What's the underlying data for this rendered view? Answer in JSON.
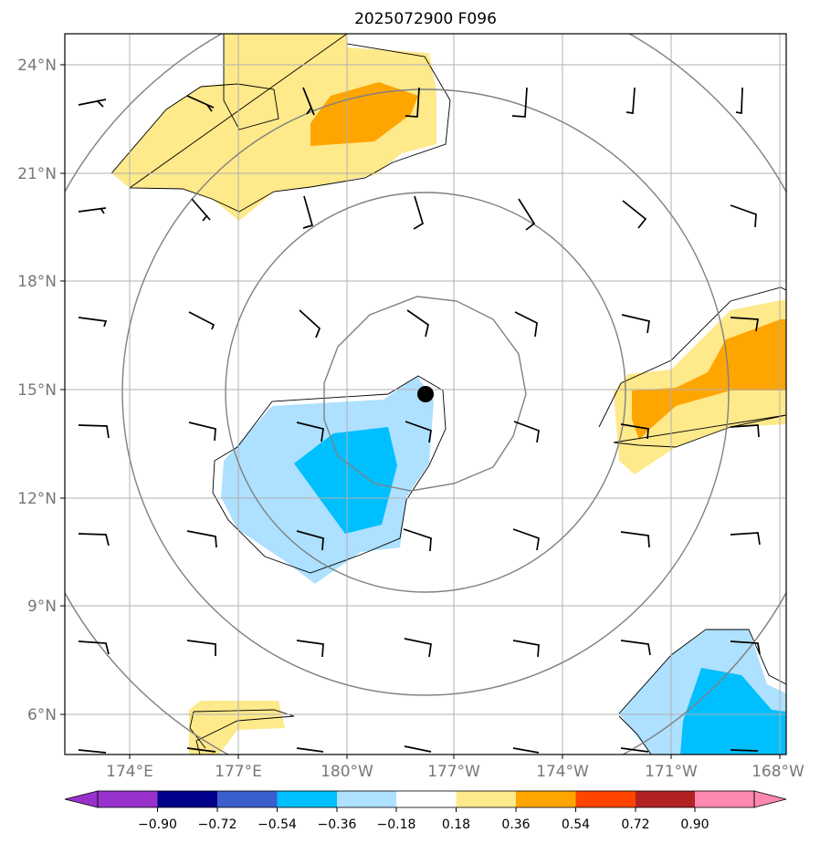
{
  "title": "2025072900 F096",
  "colors": {
    "light_yellow": "#fee98b",
    "orange": "#ffa500",
    "light_blue": "#aee0ff",
    "deep_sky_blue": "#00bfff",
    "grid": "#b0b0b0",
    "contour": "#808080",
    "coast": "#000000",
    "tick_label": "#777777"
  },
  "lat_labels": [
    "24°N",
    "21°N",
    "18°N",
    "15°N",
    "12°N",
    "9°N",
    "6°N"
  ],
  "lon_labels": [
    "174°E",
    "177°E",
    "180°W",
    "177°W",
    "174°W",
    "171°W",
    "168°W"
  ],
  "colorbar": {
    "labels": [
      "−0.90",
      "−0.72",
      "−0.54",
      "−0.36",
      "−0.18",
      "0.18",
      "0.36",
      "0.54",
      "0.72",
      "0.90"
    ],
    "colors": [
      "#9932cc",
      "#00008b",
      "#3a5fcd",
      "#00bfff",
      "#aee0ff",
      "#ffffff",
      "#fee98b",
      "#ffa500",
      "#ff4500",
      "#b22222",
      "#ff88b0"
    ],
    "extend": "both"
  },
  "center_marker": "filled-black-circle",
  "layers": [
    "shaded-field",
    "contour-rings",
    "wind-barbs",
    "gridlines"
  ]
}
